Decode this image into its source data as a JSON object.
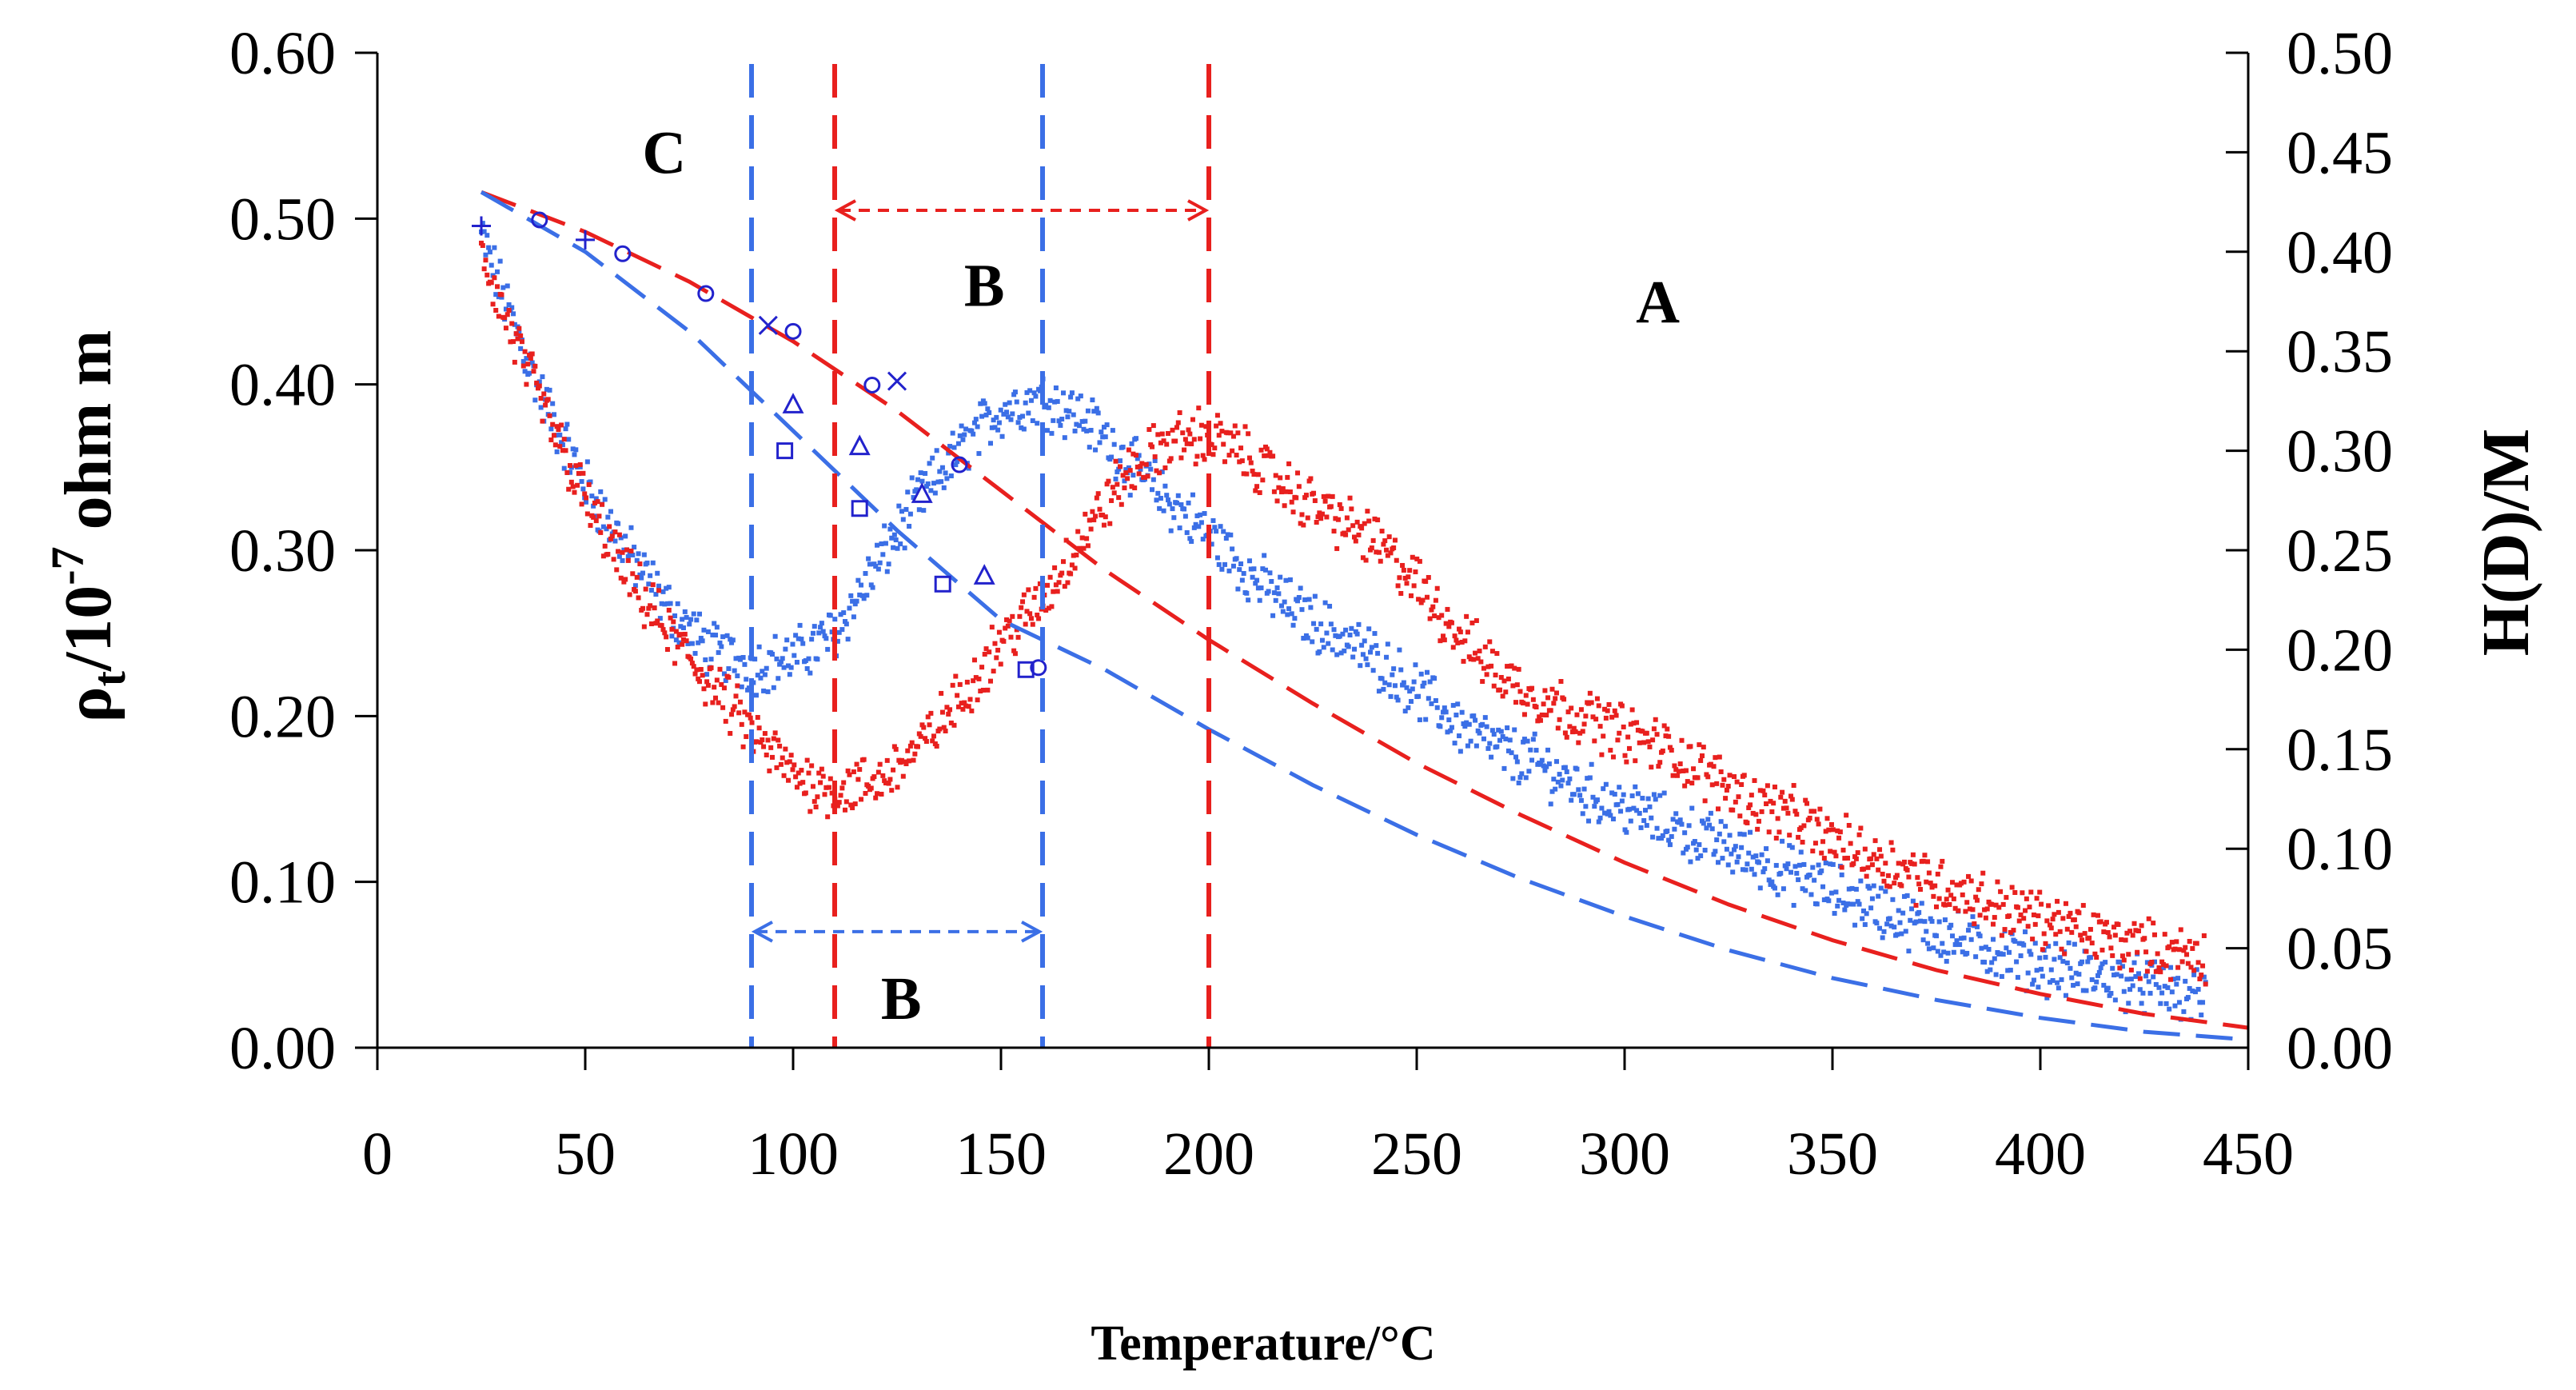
{
  "chart_data": {
    "type": "scatter",
    "xlabel": "Temperature/°C",
    "ylabel_left": {
      "main": "ρ",
      "sub": "t",
      "mid": "/10",
      "sup": "-7",
      "unit": " ohm m"
    },
    "ylabel_right": "H(D)/M",
    "xlim": [
      0,
      450
    ],
    "ylim_left": [
      0,
      0.6
    ],
    "ylim_right": [
      0,
      0.5
    ],
    "x_ticks": [
      "0",
      "50",
      "100",
      "150",
      "200",
      "250",
      "300",
      "350",
      "400",
      "450"
    ],
    "y_left_ticks": [
      "0.00",
      "0.10",
      "0.20",
      "0.30",
      "0.40",
      "0.50",
      "0.60"
    ],
    "y_right_ticks": [
      "0.00",
      "0.05",
      "0.10",
      "0.15",
      "0.20",
      "0.25",
      "0.30",
      "0.35",
      "0.40",
      "0.45",
      "0.50"
    ],
    "region_labels": [
      {
        "text": "C",
        "x": 69,
        "y": 0.54
      },
      {
        "text": "B",
        "x": 146,
        "y": 0.46
      },
      {
        "text": "A",
        "x": 308,
        "y": 0.45
      },
      {
        "text": "B",
        "x": 126,
        "y": 0.03
      }
    ],
    "boundaries": [
      {
        "x": 90,
        "color": "#3b6fe6"
      },
      {
        "x": 110,
        "color": "#e8201e"
      },
      {
        "x": 160,
        "color": "#3b6fe6"
      },
      {
        "x": 200,
        "color": "#e8201e"
      }
    ],
    "ranges": [
      {
        "x1": 110,
        "x2": 200,
        "y": 0.505,
        "color": "#e8201e"
      },
      {
        "x1": 90,
        "x2": 160,
        "y": 0.07,
        "color": "#3b6fe6"
      }
    ],
    "series": [
      {
        "name": "resistivity-blue",
        "axis": "left",
        "color": "#3b6fe6",
        "style": "dotted-noise",
        "x": [
          25,
          30,
          40,
          50,
          60,
          70,
          80,
          90,
          100,
          110,
          120,
          130,
          140,
          150,
          160,
          170,
          180,
          190,
          200,
          210,
          220,
          230,
          240,
          250,
          260,
          270,
          280,
          290,
          300,
          310,
          320,
          330,
          340,
          350,
          360,
          370,
          380,
          390,
          400,
          410,
          420,
          430,
          440
        ],
        "values": [
          0.49,
          0.455,
          0.39,
          0.34,
          0.3,
          0.265,
          0.24,
          0.23,
          0.235,
          0.25,
          0.29,
          0.33,
          0.36,
          0.385,
          0.392,
          0.38,
          0.355,
          0.33,
          0.31,
          0.285,
          0.265,
          0.25,
          0.235,
          0.215,
          0.195,
          0.18,
          0.17,
          0.155,
          0.145,
          0.135,
          0.125,
          0.115,
          0.105,
          0.095,
          0.085,
          0.075,
          0.065,
          0.058,
          0.05,
          0.045,
          0.04,
          0.035,
          0.03
        ]
      },
      {
        "name": "resistivity-red",
        "axis": "left",
        "color": "#e8201e",
        "style": "dotted-noise",
        "x": [
          25,
          30,
          40,
          50,
          60,
          70,
          80,
          90,
          100,
          110,
          120,
          130,
          140,
          150,
          160,
          170,
          180,
          190,
          200,
          210,
          220,
          230,
          240,
          250,
          260,
          270,
          280,
          290,
          300,
          310,
          320,
          330,
          340,
          350,
          360,
          370,
          380,
          390,
          400,
          410,
          420,
          430,
          440
        ],
        "values": [
          0.48,
          0.445,
          0.385,
          0.33,
          0.285,
          0.25,
          0.22,
          0.19,
          0.165,
          0.155,
          0.16,
          0.18,
          0.21,
          0.245,
          0.27,
          0.31,
          0.345,
          0.365,
          0.37,
          0.355,
          0.335,
          0.32,
          0.305,
          0.28,
          0.25,
          0.225,
          0.21,
          0.2,
          0.19,
          0.18,
          0.165,
          0.15,
          0.14,
          0.125,
          0.115,
          0.105,
          0.095,
          0.085,
          0.078,
          0.07,
          0.063,
          0.058,
          0.055
        ]
      },
      {
        "name": "H(D)/M-red-fit",
        "axis": "right",
        "color": "#e8201e",
        "style": "dashed",
        "x": [
          25,
          50,
          75,
          100,
          125,
          150,
          175,
          200,
          225,
          250,
          275,
          300,
          325,
          350,
          375,
          400,
          425,
          450
        ],
        "values": [
          0.43,
          0.41,
          0.385,
          0.355,
          0.32,
          0.28,
          0.24,
          0.205,
          0.173,
          0.143,
          0.117,
          0.093,
          0.072,
          0.054,
          0.039,
          0.027,
          0.017,
          0.01
        ]
      },
      {
        "name": "H(D)/M-blue-fit",
        "axis": "right",
        "color": "#3b6fe6",
        "style": "dashed",
        "x": [
          25,
          50,
          75,
          100,
          125,
          150,
          160,
          175,
          200,
          225,
          250,
          275,
          300,
          325,
          350,
          375,
          400,
          425,
          450
        ],
        "values": [
          0.43,
          0.4,
          0.36,
          0.31,
          0.26,
          0.215,
          0.205,
          0.19,
          0.16,
          0.132,
          0.107,
          0.085,
          0.066,
          0.049,
          0.035,
          0.024,
          0.015,
          0.008,
          0.004
        ]
      },
      {
        "name": "circles",
        "axis": "right",
        "marker": "circle",
        "color": "#2222cc",
        "x": [
          39,
          59,
          79,
          100,
          119,
          140,
          159
        ],
        "values": [
          0.416,
          0.399,
          0.379,
          0.36,
          0.333,
          0.293,
          0.191
        ]
      },
      {
        "name": "plus",
        "axis": "right",
        "marker": "plus",
        "color": "#2222cc",
        "x": [
          25,
          50
        ],
        "values": [
          0.413,
          0.406
        ]
      },
      {
        "name": "cross",
        "axis": "right",
        "marker": "cross",
        "color": "#2222cc",
        "x": [
          94,
          125
        ],
        "values": [
          0.363,
          0.335
        ]
      },
      {
        "name": "triangles",
        "axis": "right",
        "marker": "triangle",
        "color": "#2222cc",
        "x": [
          100,
          116,
          131,
          146
        ],
        "values": [
          0.323,
          0.302,
          0.278,
          0.237
        ]
      },
      {
        "name": "squares",
        "axis": "right",
        "marker": "square",
        "color": "#2222cc",
        "x": [
          98,
          116,
          136,
          156
        ],
        "values": [
          0.3,
          0.271,
          0.233,
          0.19
        ]
      }
    ]
  }
}
